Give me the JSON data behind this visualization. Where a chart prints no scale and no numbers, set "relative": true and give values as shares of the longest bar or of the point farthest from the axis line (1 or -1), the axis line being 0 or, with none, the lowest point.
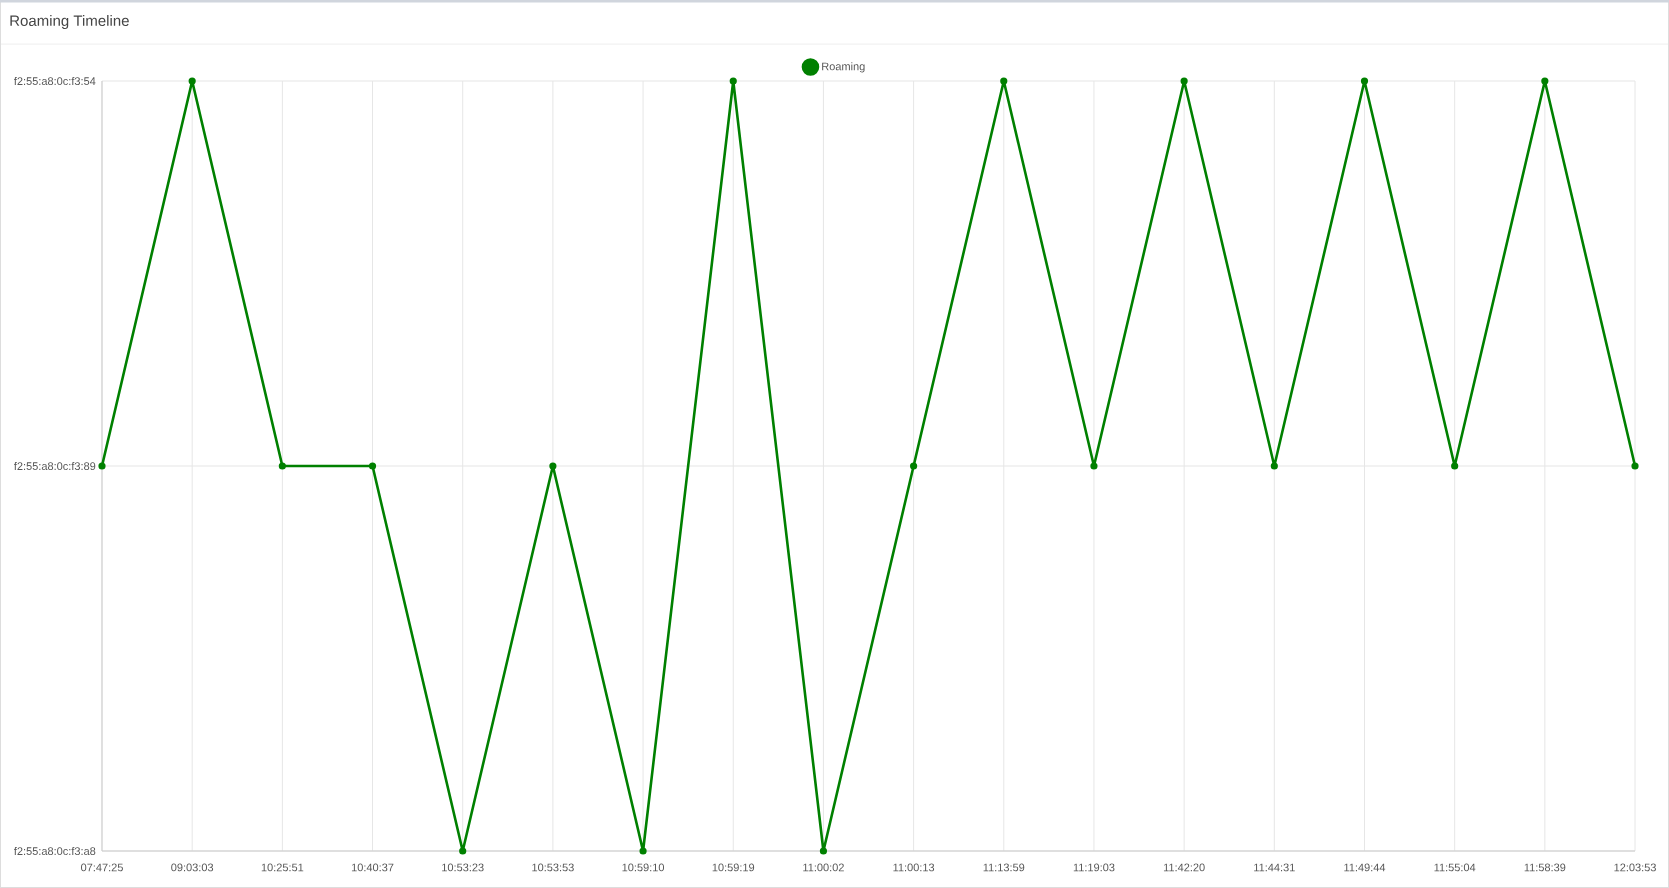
{
  "chart_data": {
    "type": "line",
    "title": "Roaming Timeline",
    "categories": [
      "07:47:25",
      "09:03:03",
      "10:25:51",
      "10:40:37",
      "10:53:23",
      "10:53:53",
      "10:59:10",
      "10:59:19",
      "11:00:02",
      "11:00:13",
      "11:13:59",
      "11:19:03",
      "11:42:20",
      "11:44:31",
      "11:49:44",
      "11:55:04",
      "11:58:39",
      "12:03:53"
    ],
    "series": [
      {
        "name": "Roaming",
        "color": "#008000",
        "values": [
          0.5,
          1,
          0.5,
          0.5,
          0,
          0.5,
          0,
          1,
          0,
          0.5,
          1,
          0.5,
          1,
          0.5,
          1,
          0.5,
          1,
          0.5
        ]
      }
    ],
    "relative": true,
    "annotations": [
      "f2:55:a8:0c:f3:54",
      "f2:55:a8:0c:f3:89",
      "f2:55:a8:0c:f3:a8"
    ],
    "grid": true,
    "legend": "top",
    "marker": "circle",
    "line_style": "solid"
  }
}
